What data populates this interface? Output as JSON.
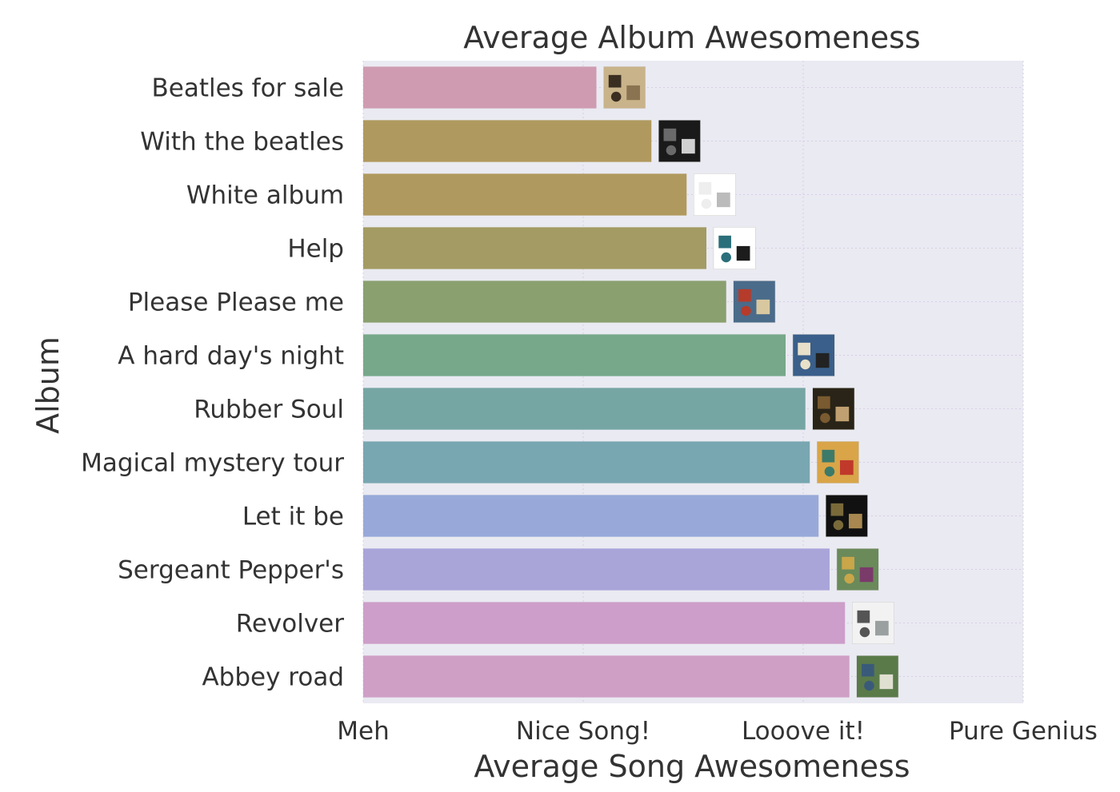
{
  "chart_data": {
    "type": "bar",
    "orientation": "horizontal",
    "title": "Average Album Awesomeness",
    "xlabel": "Average Song Awesomeness",
    "ylabel": "Album",
    "xlim": [
      0,
      3
    ],
    "x_tick_values": [
      0,
      1,
      2,
      3
    ],
    "x_tick_labels": [
      "Meh",
      "Nice Song!",
      "Looove it!",
      "Pure Genius"
    ],
    "grid": true,
    "categories": [
      "Beatles for sale",
      "With the beatles",
      "White album",
      "Help",
      "Please Please me",
      "A hard day's night",
      "Rubber Soul",
      "Magical mystery tour",
      "Let it be",
      "Sergeant Pepper's",
      "Revolver",
      "Abbey road"
    ],
    "values": [
      1.06,
      1.31,
      1.47,
      1.56,
      1.65,
      1.92,
      2.01,
      2.03,
      2.07,
      2.12,
      2.19,
      2.21
    ],
    "bar_colors": [
      "#cf9bb1",
      "#b0995e",
      "#b0995e",
      "#a39b63",
      "#8aa06e",
      "#77a88a",
      "#76a6a4",
      "#78a7b1",
      "#98a9d9",
      "#a9a5d9",
      "#cd9ec9",
      "#cf9fc6"
    ],
    "album_cover_icons": [
      "beatles-for-sale-cover-icon",
      "with-the-beatles-cover-icon",
      "white-album-cover-icon",
      "help-cover-icon",
      "please-please-me-cover-icon",
      "a-hard-days-night-cover-icon",
      "rubber-soul-cover-icon",
      "magical-mystery-tour-cover-icon",
      "let-it-be-cover-icon",
      "sgt-peppers-cover-icon",
      "revolver-cover-icon",
      "abbey-road-cover-icon"
    ]
  }
}
